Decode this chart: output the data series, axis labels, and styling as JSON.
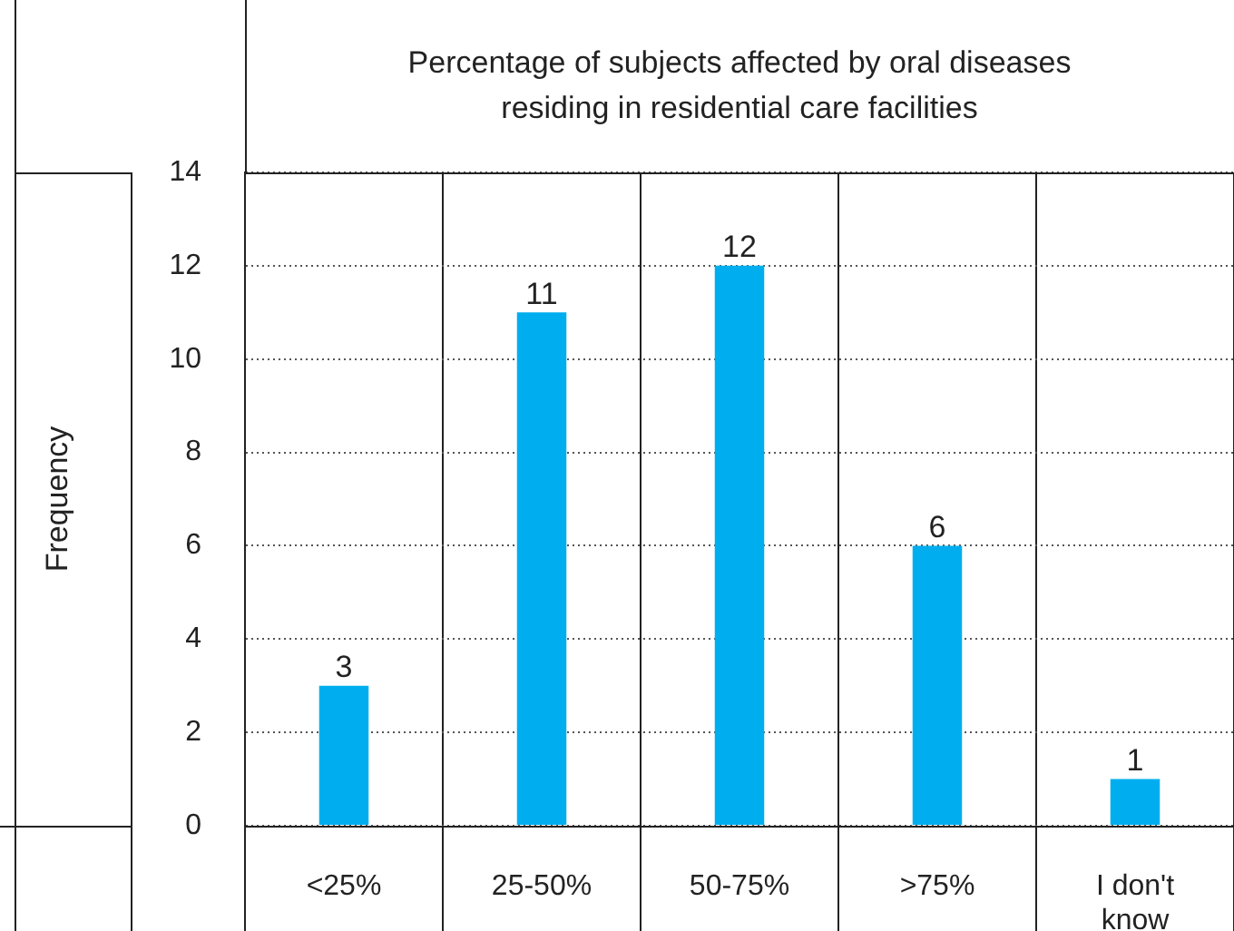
{
  "chart_data": {
    "type": "bar",
    "title": "Percentage of subjects affected by oral diseases residing in residential care facilities",
    "ylabel": "Frequency",
    "categories": [
      "<25%",
      "25-50%",
      "50-75%",
      ">75%",
      "I don't know"
    ],
    "values": [
      3,
      11,
      12,
      6,
      1
    ],
    "color": "#00aeef",
    "ylim": [
      0,
      14
    ],
    "yticks": [
      0,
      2,
      4,
      6,
      8,
      10,
      12,
      14
    ],
    "grid": true,
    "data_labels": true
  }
}
